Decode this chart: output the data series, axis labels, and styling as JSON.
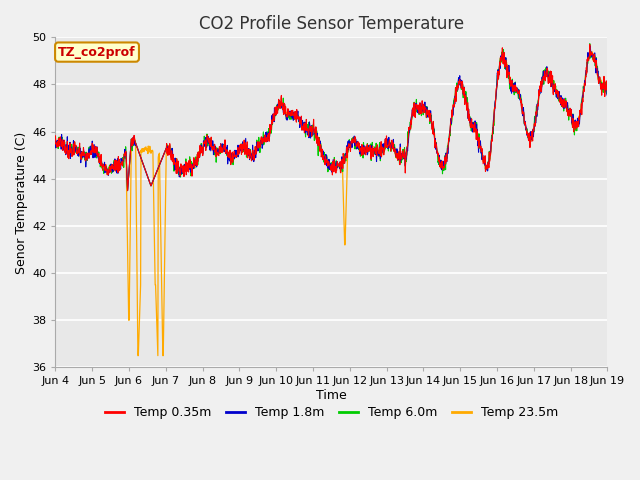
{
  "title": "CO2 Profile Sensor Temperature",
  "xlabel": "Time",
  "ylabel": "Senor Temperature (C)",
  "ylim": [
    36,
    50
  ],
  "yticks": [
    36,
    38,
    40,
    42,
    44,
    46,
    48,
    50
  ],
  "annotation_text": "TZ_co2prof",
  "annotation_bg": "#ffffcc",
  "annotation_border": "#cc8800",
  "legend_labels": [
    "Temp 0.35m",
    "Temp 1.8m",
    "Temp 6.0m",
    "Temp 23.5m"
  ],
  "legend_colors": [
    "#ff0000",
    "#0000cc",
    "#00cc00",
    "#ffaa00"
  ],
  "line_colors": [
    "#ff0000",
    "#0000cc",
    "#00cc00",
    "#ffaa00"
  ],
  "fig_facecolor": "#f0f0f0",
  "axes_facecolor": "#e8e8e8",
  "x_labels": [
    "Jun 4",
    "Jun 5",
    "Jun 6",
    "Jun 7",
    "Jun 8",
    "Jun 9",
    "Jun 10",
    "Jun 11",
    "Jun 12",
    "Jun 13",
    "Jun 14",
    "Jun 15",
    "Jun 16",
    "Jun 17",
    "Jun 18",
    "Jun 19"
  ]
}
